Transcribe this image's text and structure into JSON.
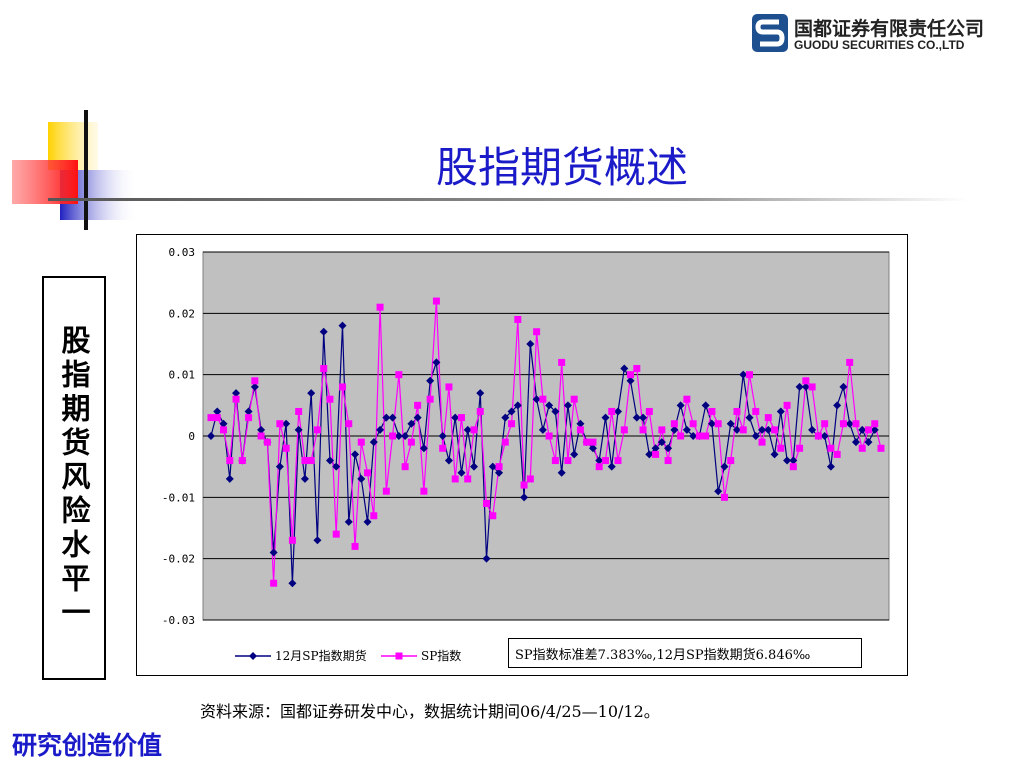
{
  "header": {
    "logo_cn": "国都证券有限责任公司",
    "logo_en": "GUODU SECURITIES CO.,LTD"
  },
  "title": "股指期货概述",
  "side_label": "股指期货风险水平一",
  "stats_note": "SP指数标准差7.383‰,12月SP指数期货6.846‰",
  "source_note": "资料来源：国都证券研发中心，数据统计期间06/4/25—10/12。",
  "motto": "研究创造价值",
  "colors": {
    "title": "#1a1ac8",
    "futures_series": "#000080",
    "index_series": "#ff00ff",
    "plot_bg": "#c0c0c0"
  },
  "chart_data": {
    "type": "line",
    "title": "",
    "xlabel": "",
    "ylabel": "",
    "ylim": [
      -0.03,
      0.03
    ],
    "yticks": [
      0.03,
      0.02,
      0.01,
      0,
      -0.01,
      -0.02,
      -0.03
    ],
    "ytick_labels": [
      "0.03",
      "0.02",
      "0.01",
      "0",
      "-0.01",
      "-0.02",
      "-0.03"
    ],
    "grid": true,
    "legend": "bottom-left",
    "series": [
      {
        "name": "12月SP指数期货",
        "marker": "diamond",
        "values": [
          0.0,
          0.004,
          0.002,
          -0.007,
          0.007,
          -0.004,
          0.004,
          0.008,
          0.001,
          -0.001,
          -0.019,
          -0.005,
          0.002,
          -0.024,
          0.001,
          -0.007,
          0.007,
          -0.017,
          0.017,
          -0.004,
          -0.005,
          0.018,
          -0.014,
          -0.003,
          -0.007,
          -0.014,
          -0.001,
          0.001,
          0.003,
          0.003,
          0.0,
          0.0,
          0.002,
          0.003,
          -0.002,
          0.009,
          0.012,
          0.0,
          -0.004,
          0.003,
          -0.006,
          0.001,
          -0.005,
          0.007,
          -0.02,
          -0.005,
          -0.006,
          0.003,
          0.004,
          0.005,
          -0.01,
          0.015,
          0.006,
          0.001,
          0.005,
          0.004,
          -0.006,
          0.005,
          -0.003,
          0.002,
          -0.001,
          -0.002,
          -0.004,
          0.003,
          -0.005,
          0.004,
          0.011,
          0.009,
          0.003,
          0.003,
          -0.003,
          -0.002,
          -0.001,
          -0.002,
          0.001,
          0.005,
          0.001,
          0.0,
          0.0,
          0.005,
          0.002,
          -0.009,
          -0.005,
          0.002,
          0.001,
          0.01,
          0.003,
          0.0,
          0.001,
          0.001,
          -0.003,
          0.004,
          -0.004,
          -0.004,
          0.008,
          0.008,
          0.001,
          0.0,
          0.0,
          -0.005,
          0.005,
          0.008,
          0.002,
          -0.001,
          0.001,
          -0.001,
          0.001
        ],
        "color": "#000080"
      },
      {
        "name": "SP指数",
        "marker": "square",
        "values": [
          0.003,
          0.003,
          0.001,
          -0.004,
          0.006,
          -0.004,
          0.003,
          0.009,
          0.0,
          -0.001,
          -0.024,
          0.002,
          -0.002,
          -0.017,
          0.004,
          -0.004,
          -0.004,
          0.001,
          0.011,
          0.006,
          -0.016,
          0.008,
          0.002,
          -0.018,
          -0.001,
          -0.006,
          -0.013,
          0.021,
          -0.009,
          0.0,
          0.01,
          -0.005,
          -0.001,
          0.005,
          -0.009,
          0.006,
          0.022,
          -0.002,
          0.008,
          -0.007,
          0.003,
          -0.007,
          0.001,
          0.004,
          -0.011,
          -0.013,
          -0.005,
          -0.001,
          0.002,
          0.019,
          -0.008,
          -0.007,
          0.017,
          0.006,
          0.0,
          -0.004,
          0.012,
          -0.004,
          0.006,
          0.001,
          -0.001,
          -0.001,
          -0.005,
          -0.004,
          0.004,
          -0.004,
          0.001,
          0.01,
          0.011,
          0.001,
          0.004,
          -0.003,
          0.001,
          -0.004,
          0.002,
          0.0,
          0.006,
          0.002,
          0.0,
          0.0,
          0.004,
          0.002,
          -0.01,
          -0.004,
          0.004,
          0.001,
          0.01,
          0.004,
          -0.001,
          0.003,
          0.001,
          -0.002,
          0.005,
          -0.005,
          -0.002,
          0.009,
          0.008,
          0.0,
          0.002,
          -0.002,
          -0.003,
          0.002,
          0.012,
          0.002,
          -0.002,
          0.001,
          0.002,
          -0.002
        ],
        "color": "#ff00ff"
      }
    ]
  }
}
